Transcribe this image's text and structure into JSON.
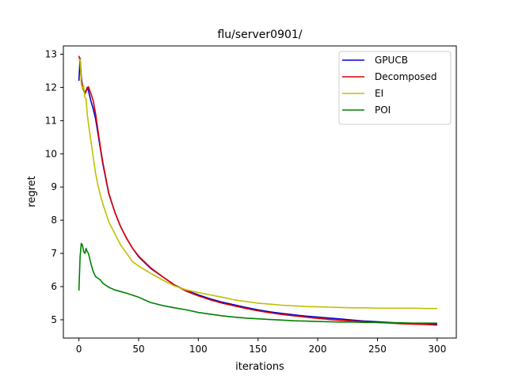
{
  "chart_data": {
    "type": "line",
    "title": "flu/server0901/",
    "xlabel": "iterations",
    "ylabel": "regret",
    "xlim": [
      -13,
      316
    ],
    "ylim": [
      4.45,
      13.25
    ],
    "xticks": [
      0,
      50,
      100,
      150,
      200,
      250,
      300
    ],
    "yticks": [
      5,
      6,
      7,
      8,
      9,
      10,
      11,
      12,
      13
    ],
    "grid": false,
    "legend_position": "top-right",
    "series": [
      {
        "name": "GPUCB",
        "color": "#0000cc",
        "x": [
          0,
          1,
          2,
          3,
          4,
          5,
          6,
          7,
          8,
          9,
          10,
          12,
          14,
          16,
          18,
          20,
          25,
          30,
          35,
          40,
          45,
          50,
          60,
          70,
          80,
          90,
          100,
          110,
          120,
          130,
          140,
          150,
          160,
          170,
          180,
          190,
          200,
          210,
          220,
          230,
          240,
          250,
          260,
          270,
          280,
          290,
          300
        ],
        "y": [
          12.2,
          12.88,
          12.3,
          12.05,
          11.95,
          11.85,
          11.9,
          12.0,
          11.9,
          11.75,
          11.6,
          11.35,
          11.05,
          10.6,
          10.15,
          9.7,
          8.8,
          8.25,
          7.8,
          7.45,
          7.15,
          6.9,
          6.55,
          6.3,
          6.05,
          5.88,
          5.75,
          5.63,
          5.53,
          5.45,
          5.37,
          5.3,
          5.24,
          5.19,
          5.15,
          5.11,
          5.08,
          5.05,
          5.02,
          4.99,
          4.96,
          4.94,
          4.92,
          4.9,
          4.89,
          4.88,
          4.87
        ]
      },
      {
        "name": "Decomposed",
        "color": "#dd0000",
        "x": [
          0,
          1,
          2,
          3,
          4,
          5,
          6,
          7,
          8,
          9,
          10,
          12,
          14,
          16,
          18,
          20,
          25,
          30,
          35,
          40,
          45,
          50,
          60,
          70,
          80,
          90,
          100,
          110,
          120,
          130,
          140,
          150,
          160,
          170,
          180,
          190,
          200,
          210,
          220,
          230,
          240,
          250,
          260,
          270,
          280,
          290,
          300
        ],
        "y": [
          12.95,
          12.8,
          12.2,
          12.05,
          11.9,
          11.8,
          11.88,
          11.98,
          12.02,
          11.92,
          11.82,
          11.6,
          11.2,
          10.7,
          10.2,
          9.75,
          8.82,
          8.25,
          7.8,
          7.45,
          7.15,
          6.92,
          6.57,
          6.3,
          6.05,
          5.86,
          5.72,
          5.6,
          5.5,
          5.42,
          5.34,
          5.27,
          5.21,
          5.16,
          5.12,
          5.08,
          5.04,
          5.01,
          4.98,
          4.96,
          4.94,
          4.92,
          4.9,
          4.88,
          4.87,
          4.86,
          4.84
        ]
      },
      {
        "name": "EI",
        "color": "#bfbf00",
        "x": [
          0,
          1,
          2,
          3,
          4,
          5,
          6,
          7,
          8,
          10,
          12,
          14,
          16,
          18,
          20,
          25,
          30,
          35,
          40,
          45,
          50,
          60,
          70,
          80,
          90,
          100,
          110,
          120,
          130,
          140,
          150,
          160,
          170,
          180,
          190,
          200,
          210,
          220,
          230,
          240,
          250,
          260,
          270,
          280,
          290,
          300
        ],
        "y": [
          12.8,
          12.85,
          12.1,
          11.95,
          12.05,
          11.7,
          11.65,
          11.2,
          10.9,
          10.4,
          9.9,
          9.4,
          9.05,
          8.75,
          8.5,
          7.95,
          7.6,
          7.25,
          7.0,
          6.75,
          6.62,
          6.4,
          6.2,
          6.02,
          5.9,
          5.82,
          5.75,
          5.68,
          5.6,
          5.55,
          5.5,
          5.47,
          5.44,
          5.42,
          5.4,
          5.39,
          5.38,
          5.37,
          5.36,
          5.36,
          5.35,
          5.35,
          5.35,
          5.35,
          5.34,
          5.34
        ]
      },
      {
        "name": "POI",
        "color": "#008000",
        "x": [
          0,
          1,
          2,
          3,
          4,
          5,
          6,
          7,
          8,
          9,
          10,
          12,
          14,
          16,
          18,
          20,
          25,
          30,
          35,
          40,
          45,
          50,
          60,
          70,
          80,
          90,
          100,
          110,
          120,
          130,
          140,
          150,
          160,
          170,
          180,
          190,
          200,
          210,
          220,
          230,
          240,
          250,
          260,
          270,
          280,
          290,
          300
        ],
        "y": [
          5.88,
          6.9,
          7.3,
          7.25,
          7.05,
          7.0,
          7.15,
          7.05,
          7.0,
          6.85,
          6.7,
          6.45,
          6.3,
          6.25,
          6.2,
          6.1,
          5.98,
          5.9,
          5.85,
          5.8,
          5.74,
          5.68,
          5.52,
          5.43,
          5.36,
          5.3,
          5.22,
          5.17,
          5.12,
          5.08,
          5.05,
          5.03,
          5.01,
          4.99,
          4.97,
          4.96,
          4.95,
          4.94,
          4.93,
          4.93,
          4.92,
          4.92,
          4.91,
          4.91,
          4.9,
          4.9,
          4.9
        ]
      }
    ]
  }
}
